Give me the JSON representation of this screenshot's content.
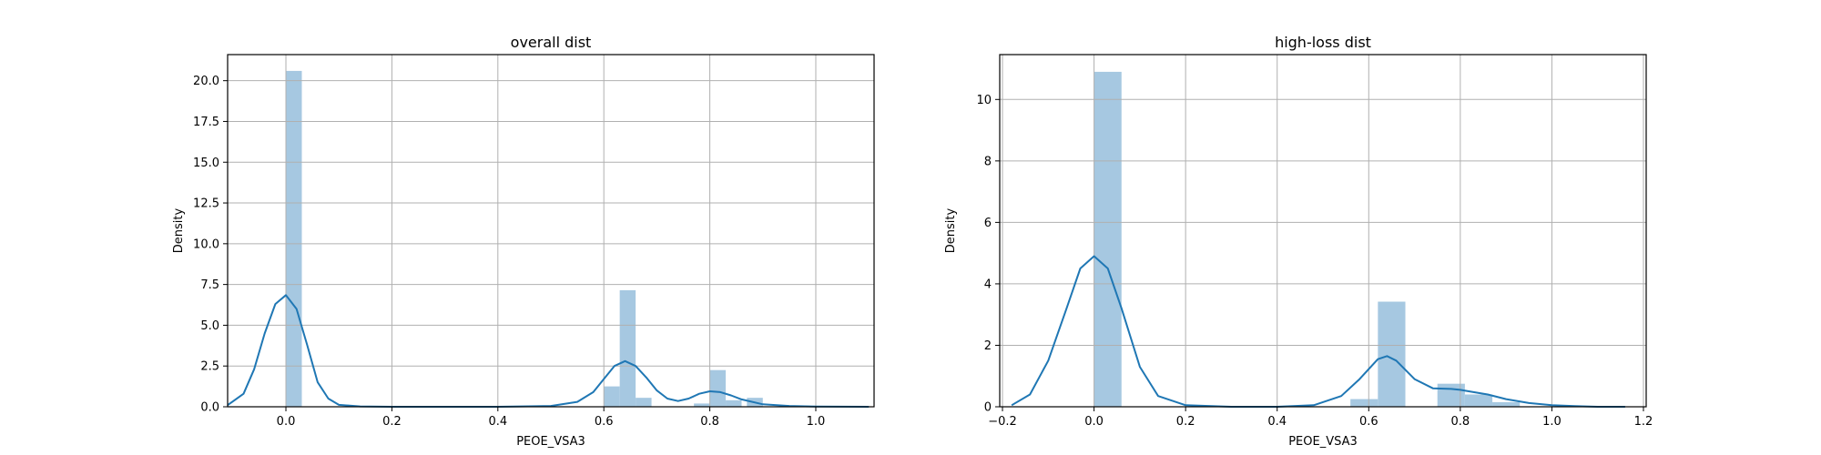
{
  "chart_data": [
    {
      "type": "histogram+kde",
      "title": "overall dist",
      "xlabel": "PEOE_VSA3",
      "ylabel": "Density",
      "xlim": [
        -0.11,
        1.11
      ],
      "ylim": [
        0,
        21.6
      ],
      "grid": true,
      "xticks": [
        0.0,
        0.2,
        0.4,
        0.6,
        0.8,
        1.0
      ],
      "xtick_labels": [
        "0.0",
        "0.2",
        "0.4",
        "0.6",
        "0.8",
        "1.0"
      ],
      "yticks": [
        0,
        2.5,
        5,
        7.5,
        10,
        12.5,
        15,
        17.5,
        20
      ],
      "ytick_labels": [
        "0.0",
        "2.5",
        "5.0",
        "7.5",
        "10.0",
        "12.5",
        "15.0",
        "17.5",
        "20.0"
      ],
      "bins": [
        {
          "x0": 0.0,
          "x1": 0.03,
          "density": 20.6
        },
        {
          "x0": 0.6,
          "x1": 0.63,
          "density": 1.25
        },
        {
          "x0": 0.63,
          "x1": 0.66,
          "density": 7.15
        },
        {
          "x0": 0.66,
          "x1": 0.69,
          "density": 0.55
        },
        {
          "x0": 0.77,
          "x1": 0.8,
          "density": 0.2
        },
        {
          "x0": 0.8,
          "x1": 0.83,
          "density": 2.25
        },
        {
          "x0": 0.83,
          "x1": 0.86,
          "density": 0.4
        },
        {
          "x0": 0.87,
          "x1": 0.9,
          "density": 0.55
        }
      ],
      "kde": {
        "x": [
          -0.11,
          -0.08,
          -0.06,
          -0.04,
          -0.02,
          0.0,
          0.02,
          0.04,
          0.06,
          0.08,
          0.1,
          0.14,
          0.2,
          0.4,
          0.5,
          0.55,
          0.58,
          0.6,
          0.62,
          0.64,
          0.66,
          0.68,
          0.7,
          0.72,
          0.74,
          0.76,
          0.78,
          0.8,
          0.82,
          0.84,
          0.86,
          0.9,
          0.95,
          1.0,
          1.1
        ],
        "y": [
          0.1,
          0.8,
          2.3,
          4.5,
          6.3,
          6.85,
          6.0,
          3.8,
          1.5,
          0.5,
          0.12,
          0.02,
          0.0,
          0.0,
          0.05,
          0.3,
          0.9,
          1.7,
          2.5,
          2.8,
          2.5,
          1.8,
          1.0,
          0.5,
          0.35,
          0.5,
          0.8,
          0.95,
          0.9,
          0.7,
          0.45,
          0.15,
          0.05,
          0.01,
          0.0
        ]
      }
    },
    {
      "type": "histogram+kde",
      "title": "high-loss dist",
      "xlabel": "PEOE_VSA3",
      "ylabel": "Density",
      "xlim": [
        -0.206,
        1.206
      ],
      "ylim": [
        0,
        11.46
      ],
      "grid": true,
      "xticks": [
        -0.2,
        0.0,
        0.2,
        0.4,
        0.6,
        0.8,
        1.0,
        1.2
      ],
      "xtick_labels": [
        "−0.2",
        "0.0",
        "0.2",
        "0.4",
        "0.6",
        "0.8",
        "1.0",
        "1.2"
      ],
      "yticks": [
        0,
        2,
        4,
        6,
        8,
        10
      ],
      "ytick_labels": [
        "0",
        "2",
        "4",
        "6",
        "8",
        "10"
      ],
      "bins": [
        {
          "x0": 0.0,
          "x1": 0.06,
          "density": 10.9
        },
        {
          "x0": 0.56,
          "x1": 0.62,
          "density": 0.25
        },
        {
          "x0": 0.62,
          "x1": 0.68,
          "density": 3.42
        },
        {
          "x0": 0.75,
          "x1": 0.81,
          "density": 0.75
        },
        {
          "x0": 0.81,
          "x1": 0.87,
          "density": 0.4
        },
        {
          "x0": 0.87,
          "x1": 0.93,
          "density": 0.15
        }
      ],
      "kde": {
        "x": [
          -0.18,
          -0.14,
          -0.1,
          -0.06,
          -0.03,
          0.0,
          0.03,
          0.06,
          0.1,
          0.14,
          0.2,
          0.3,
          0.4,
          0.48,
          0.54,
          0.58,
          0.62,
          0.64,
          0.66,
          0.7,
          0.74,
          0.78,
          0.8,
          0.82,
          0.86,
          0.9,
          0.95,
          1.0,
          1.05,
          1.1,
          1.16
        ],
        "y": [
          0.05,
          0.4,
          1.5,
          3.2,
          4.5,
          4.9,
          4.5,
          3.2,
          1.3,
          0.35,
          0.05,
          0.0,
          0.0,
          0.05,
          0.35,
          0.9,
          1.55,
          1.65,
          1.5,
          0.9,
          0.6,
          0.58,
          0.55,
          0.5,
          0.4,
          0.25,
          0.12,
          0.05,
          0.02,
          0.0,
          0.0
        ]
      }
    }
  ]
}
